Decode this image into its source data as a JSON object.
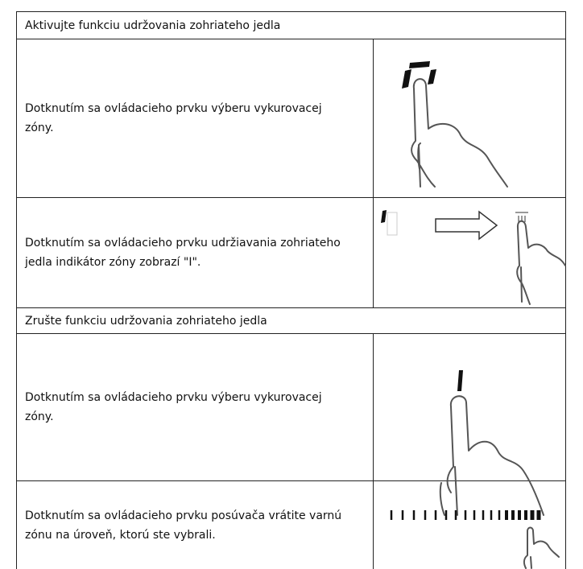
{
  "sections": [
    {
      "title": "Aktivujte funkciu udržovania zohriateho jedla",
      "steps": [
        {
          "text": "Dotknutím sa ovládacieho prvku výberu vykurovacej zóny."
        },
        {
          "text": "Dotknutím sa ovládacieho prvku udržiavania zohriateho jedla indikátor zóny zobrazí \"I\"."
        }
      ]
    },
    {
      "title": "Zrušte funkciu udržovania zohriateho jedla",
      "steps": [
        {
          "text": "Dotknutím sa ovládacieho prvku výberu vykurovacej zóny."
        },
        {
          "text": "Dotknutím sa ovládacieho prvku posúvača vrátite varnú zónu na úroveň, ktorú ste vybrali."
        }
      ]
    }
  ]
}
